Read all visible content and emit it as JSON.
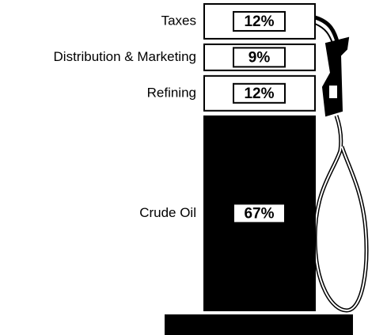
{
  "chart_data": {
    "type": "bar",
    "categories": [
      "Taxes",
      "Distribution & Marketing",
      "Refining",
      "Crude Oil"
    ],
    "values": [
      12,
      9,
      12,
      67
    ],
    "value_labels": [
      "12%",
      "9%",
      "12%",
      "67%"
    ],
    "colors": [
      "#ffffff",
      "#ffffff",
      "#ffffff",
      "#000000"
    ],
    "ylim": [
      0,
      100
    ]
  }
}
